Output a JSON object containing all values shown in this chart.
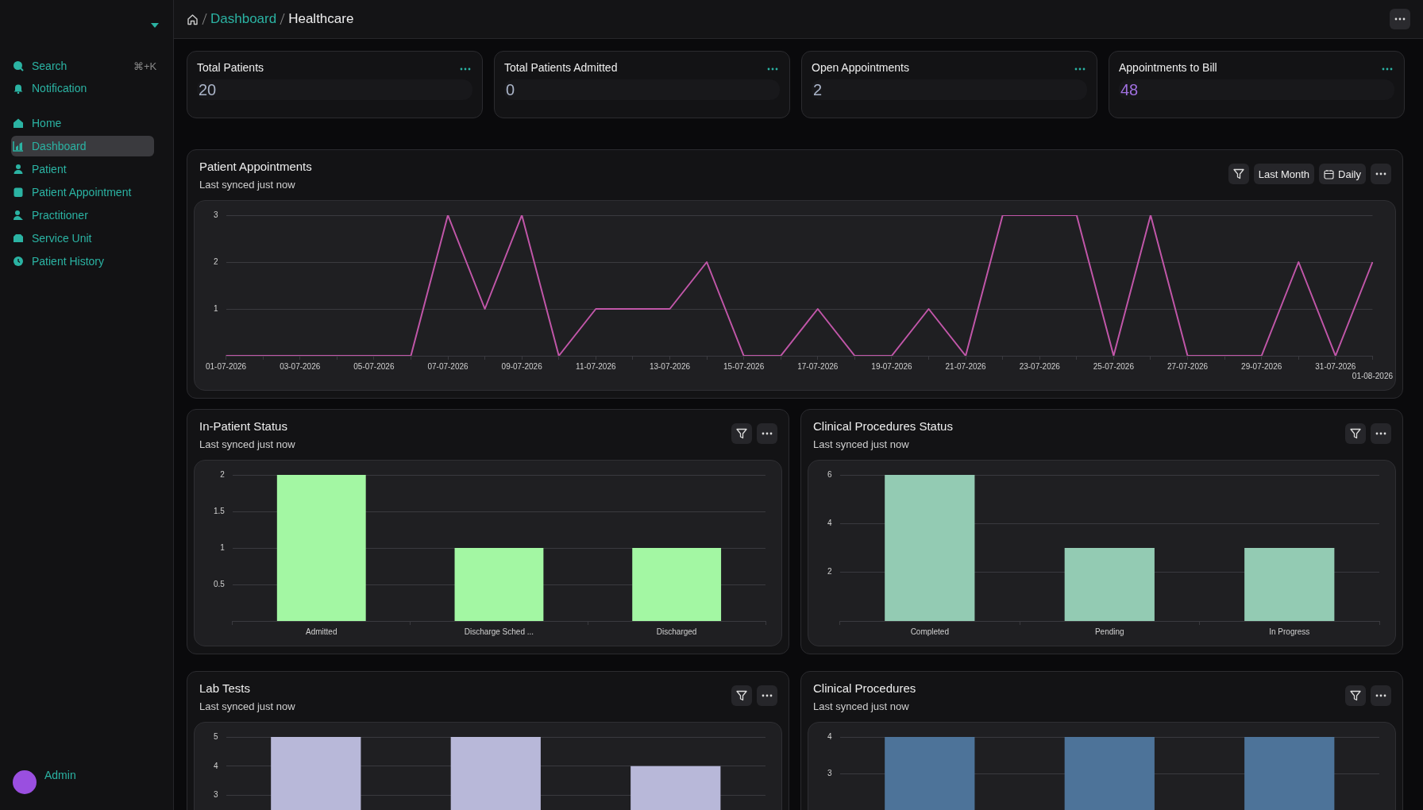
{
  "chart_data": [
    {
      "type": "other",
      "annotations": [
        "Search",
        "⌘+K",
        "Notification",
        "Home",
        "Dashboard",
        "Patient",
        "Patient Appointment",
        "Practitioner",
        "Service Unit",
        "Patient History",
        "Admin",
        "Dashboard",
        "Healthcare"
      ]
    },
    {
      "type": "other",
      "title": "Total Patients",
      "annotations": [
        "20"
      ],
      "color": "#aab4c8"
    },
    {
      "type": "other",
      "title": "Total Patients Admitted",
      "annotations": [
        "0"
      ],
      "color": "#aab4c8"
    },
    {
      "type": "other",
      "title": "Open Appointments",
      "annotations": [
        "2"
      ],
      "color": "#aab4c8"
    },
    {
      "type": "other",
      "title": "Appointments to Bill",
      "annotations": [
        "48"
      ],
      "color": "#a070e0"
    },
    {
      "type": "line",
      "title": "Patient Appointments",
      "subtitle": "Last synced just now",
      "annotations": [
        "Last Month",
        "Daily"
      ],
      "categories": [
        "01-07-2026",
        null,
        "03-07-2026",
        null,
        "05-07-2026",
        null,
        "07-07-2026",
        null,
        "09-07-2026",
        null,
        "11-07-2026",
        null,
        "13-07-2026",
        null,
        "15-07-2026",
        null,
        "17-07-2026",
        null,
        "19-07-2026",
        null,
        "21-07-2026",
        null,
        "23-07-2026",
        null,
        "25-07-2026",
        null,
        "27-07-2026",
        null,
        "29-07-2026",
        null,
        "31-07-2026",
        "01-08-2026"
      ],
      "values": [
        0,
        0,
        0,
        0,
        0,
        0,
        3,
        1,
        3,
        0,
        1,
        1,
        1,
        2,
        0,
        0,
        1,
        0,
        0,
        1,
        0,
        3,
        3,
        3,
        0,
        3,
        0,
        0,
        0,
        2,
        0,
        2
      ],
      "color": "#c056a8",
      "ylim": [
        0,
        3
      ],
      "yticks": [
        1,
        2,
        3
      ],
      "grid": "y",
      "legend": false,
      "marker": "none",
      "line_style": "solid"
    },
    {
      "type": "bar",
      "title": "In-Patient Status",
      "subtitle": "Last synced just now",
      "categories": [
        "Admitted",
        "Discharge Sched ...",
        "Discharged"
      ],
      "values": [
        2,
        1,
        1
      ],
      "color": "#a3f7a3",
      "ylim": [
        0,
        2
      ],
      "yticks": [
        0.5,
        1,
        1.5,
        2
      ],
      "grid": "y",
      "legend": false
    },
    {
      "type": "bar",
      "title": "Clinical Procedures Status",
      "subtitle": "Last synced just now",
      "categories": [
        "Completed",
        "Pending",
        "In Progress"
      ],
      "values": [
        6,
        3,
        3
      ],
      "color": "#93cbb3",
      "ylim": [
        0,
        6
      ],
      "yticks": [
        2,
        4,
        6
      ],
      "grid": "y",
      "legend": false
    },
    {
      "type": "bar",
      "title": "Lab Tests",
      "subtitle": "Last synced just now",
      "categories": [
        null,
        null,
        null
      ],
      "values": [
        5,
        5,
        4
      ],
      "color": "#b8b8d9",
      "ylim": [
        0,
        5
      ],
      "yticks": [
        3,
        4,
        5
      ],
      "grid": "y",
      "legend": false
    },
    {
      "type": "bar",
      "title": "Clinical Procedures",
      "subtitle": "Last synced just now",
      "categories": [
        null,
        null,
        null
      ],
      "values": [
        4,
        4,
        4
      ],
      "color": "#4d7399",
      "ylim": [
        0,
        4
      ],
      "yticks": [
        3,
        4
      ],
      "grid": "y",
      "legend": false
    }
  ]
}
